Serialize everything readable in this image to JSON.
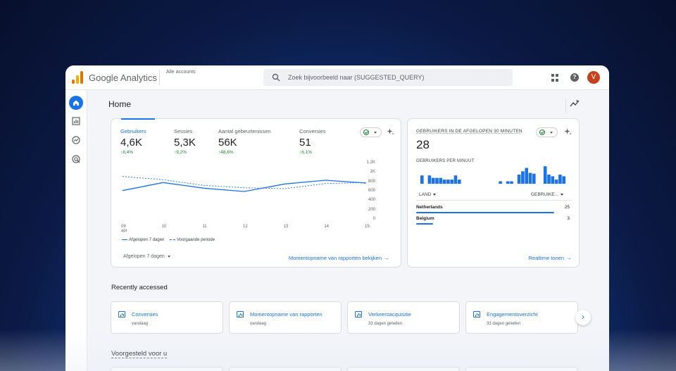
{
  "header": {
    "brand": "Google Analytics",
    "accounts": "Alle accounts",
    "search_placeholder": "Zoek bijvoorbeeld naar (SUGGESTED_QUERY)",
    "avatar_initial": "V"
  },
  "page": {
    "title": "Home"
  },
  "overview": {
    "metrics": [
      {
        "label": "Gebruikers",
        "value": "4,6K",
        "change": "↑8,4%"
      },
      {
        "label": "Sessies",
        "value": "5,3K",
        "change": "↑9,2%"
      },
      {
        "label": "Aantal gebeurtenissen",
        "value": "56K",
        "change": "↑48,6%"
      },
      {
        "label": "Conversies",
        "value": "51",
        "change": "↑6,1%"
      }
    ],
    "legend_current": "Afgelopen 7 dagen",
    "legend_previous": "Voorgaande periode",
    "date_range": "Afgelopen 7 dagen",
    "link": "Momentopname van rapporten bekijken"
  },
  "chart_data": {
    "type": "line",
    "x": [
      "09 apr",
      "10",
      "11",
      "12",
      "13",
      "14",
      "15"
    ],
    "x_tick_labels": [
      {
        "top": "09",
        "bottom": "apr"
      },
      {
        "top": "10",
        "bottom": ""
      },
      {
        "top": "11",
        "bottom": ""
      },
      {
        "top": "12",
        "bottom": ""
      },
      {
        "top": "13",
        "bottom": ""
      },
      {
        "top": "14",
        "bottom": ""
      },
      {
        "top": "15",
        "bottom": ""
      }
    ],
    "y_tick_labels": [
      "1,2K",
      "1K",
      "800",
      "600",
      "400",
      "200",
      "0"
    ],
    "ylim": [
      0,
      1200
    ],
    "y_ticks": [
      1200,
      1000,
      800,
      600,
      400,
      200,
      0
    ],
    "series": [
      {
        "name": "Afgelopen 7 dagen",
        "values": [
          620,
          790,
          670,
          600,
          760,
          840,
          780
        ],
        "style": "solid"
      },
      {
        "name": "Voorgaande periode",
        "values": [
          920,
          850,
          730,
          680,
          660,
          770,
          790
        ],
        "style": "dashed"
      }
    ],
    "color": "#1a73e8"
  },
  "realtime": {
    "title": "GEBRUIKERS IN DE AFGELOPEN 30 MINUTEN",
    "value": "28",
    "per_minute_label": "GEBRUIKERS PER MINUUT",
    "per_minute": [
      1,
      0,
      1,
      0.7,
      0.7,
      0.7,
      0.5,
      0.5,
      0.5,
      1,
      0.5,
      0,
      0,
      0,
      0,
      0,
      0,
      0,
      0,
      0,
      0,
      0.3,
      0,
      0.3,
      0.3,
      0,
      1.1,
      1.5,
      1.9,
      1.3,
      1.2,
      0,
      0,
      2.1,
      1.1,
      0.9,
      0.5,
      1.1,
      0.9
    ],
    "col_country": "LAND",
    "col_users": "GEBRUIKE...",
    "rows": [
      {
        "name": "Netherlands",
        "value": "25",
        "share": 0.89
      },
      {
        "name": "Belgium",
        "value": "3",
        "share": 0.11
      }
    ],
    "link": "Realtime tonen"
  },
  "recent": {
    "title": "Recently accessed",
    "items": [
      {
        "title": "Conversies",
        "sub": "vandaag"
      },
      {
        "title": "Momentopname van rapporten",
        "sub": "vandaag"
      },
      {
        "title": "Verkeersacquisitie",
        "sub": "33 dagen geleden"
      },
      {
        "title": "Engagementoverzicht",
        "sub": "33 dagen geleden"
      }
    ]
  },
  "suggested": {
    "title": "Voorgesteld voor u"
  },
  "colors": {
    "accent": "#1a73e8",
    "positive": "#188038",
    "avatar": "#c5421c"
  }
}
